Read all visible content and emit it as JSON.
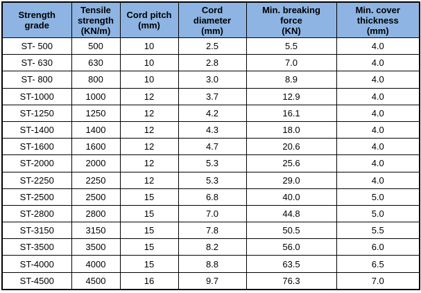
{
  "table": {
    "columns": [
      "Strength\ngrade",
      "Tensile\nstrength\n(KN/m)",
      "Cord pitch\n(mm)",
      "Cord\ndiameter\n(mm)",
      "Min. breaking\nforce\n(KN)",
      "Min. cover\nthickness\n(mm)"
    ],
    "rows": [
      [
        "ST- 500",
        "500",
        "10",
        "2.5",
        "5.5",
        "4.0"
      ],
      [
        "ST- 630",
        "630",
        "10",
        "2.8",
        "7.0",
        "4.0"
      ],
      [
        "ST- 800",
        "800",
        "10",
        "3.0",
        "8.9",
        "4.0"
      ],
      [
        "ST-1000",
        "1000",
        "12",
        "3.7",
        "12.9",
        "4.0"
      ],
      [
        "ST-1250",
        "1250",
        "12",
        "4.2",
        "16.1",
        "4.0"
      ],
      [
        "ST-1400",
        "1400",
        "12",
        "4.3",
        "18.0",
        "4.0"
      ],
      [
        "ST-1600",
        "1600",
        "12",
        "4.7",
        "20.6",
        "4.0"
      ],
      [
        "ST-2000",
        "2000",
        "12",
        "5.3",
        "25.6",
        "4.0"
      ],
      [
        "ST-2250",
        "2250",
        "12",
        "5.3",
        "29.0",
        "4.0"
      ],
      [
        "ST-2500",
        "2500",
        "15",
        "6.8",
        "40.0",
        "5.0"
      ],
      [
        "ST-2800",
        "2800",
        "15",
        "7.0",
        "44.8",
        "5.0"
      ],
      [
        "ST-3150",
        "3150",
        "15",
        "7.8",
        "50.5",
        "5.5"
      ],
      [
        "ST-3500",
        "3500",
        "15",
        "8.2",
        "56.0",
        "6.0"
      ],
      [
        "ST-4000",
        "4000",
        "15",
        "8.8",
        "63.5",
        "6.5"
      ],
      [
        "ST-4500",
        "4500",
        "16",
        "9.7",
        "76.3",
        "7.0"
      ]
    ],
    "colors": {
      "header_bg": "#8db4e2",
      "border": "#000000",
      "text": "#000000",
      "row_bg": "#ffffff"
    }
  }
}
